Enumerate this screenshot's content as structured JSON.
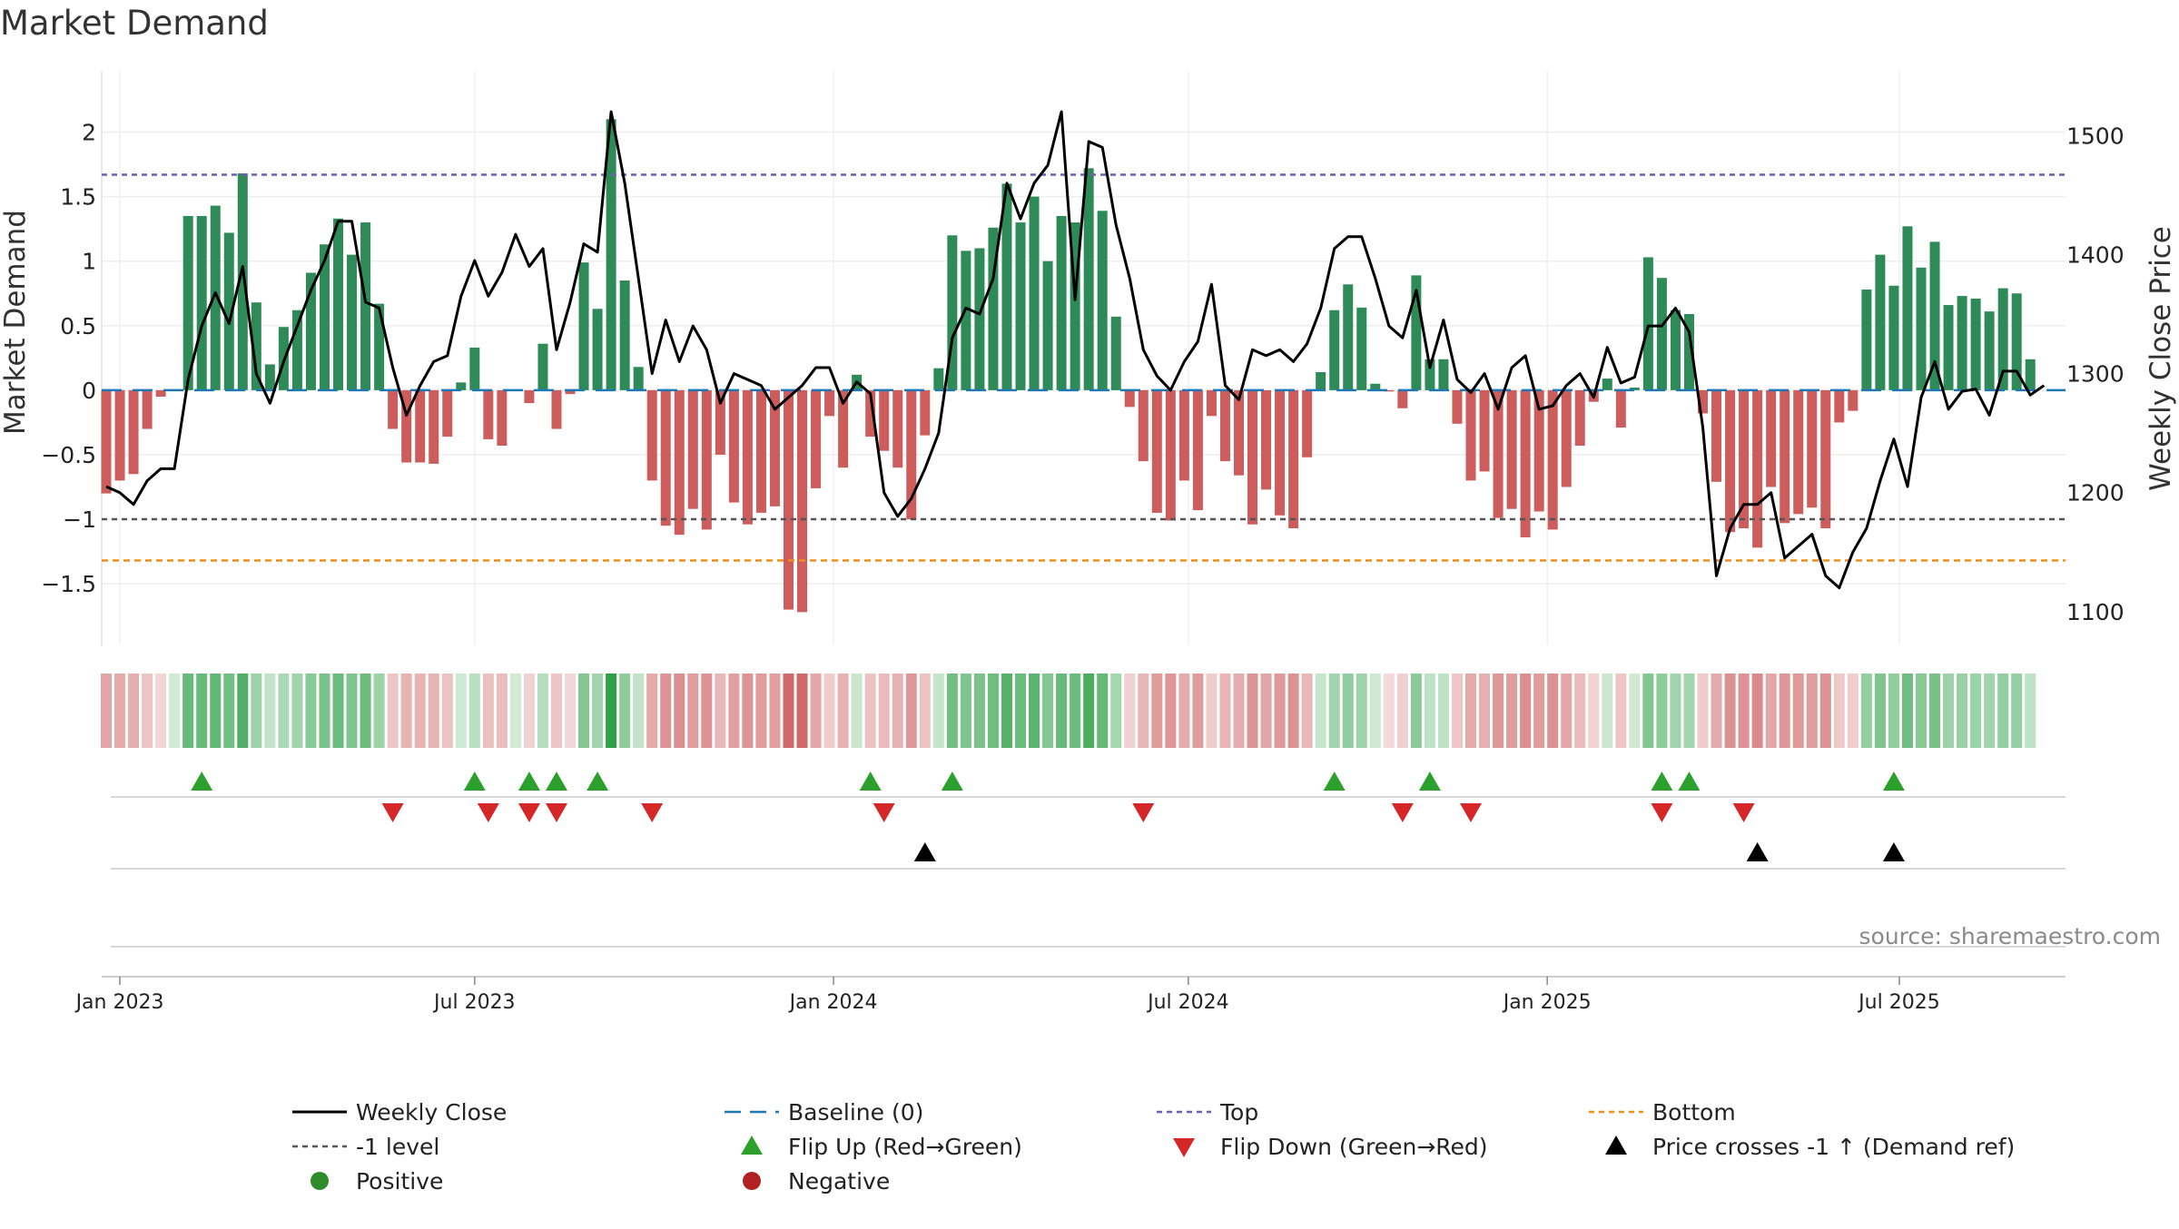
{
  "title": "Market Demand",
  "source_note": "source: sharemaestro.com",
  "colors": {
    "positive_bar": "#2e8b57",
    "negative_bar": "#cd5c5c",
    "close_line": "#000000",
    "baseline": "#1f77b4",
    "top": "#6b5fb5",
    "minus_one": "#555555",
    "bottom": "#f28e1c",
    "flip_up": "#2ca02c",
    "flip_down": "#d62728",
    "cross": "#000000"
  },
  "chart_data": {
    "type": "bar",
    "title": "Market Demand",
    "ylabel": "Market Demand",
    "y2label": "Weekly Close Price",
    "ylim": [
      -1.9,
      2.25
    ],
    "y2lim": [
      1080,
      1530
    ],
    "yticks": [
      2,
      1.5,
      1,
      0.5,
      0,
      -0.5,
      -1,
      -1.5
    ],
    "ytick_labels": [
      "2",
      "1.5",
      "1",
      "0.5",
      "0",
      "−0.5",
      "−1",
      "−1.5"
    ],
    "y2ticks": [
      1500,
      1400,
      1300,
      1200,
      1100
    ],
    "y2tick_labels": [
      "1500",
      "1400",
      "1300",
      "1200",
      "1100"
    ],
    "xticks": [
      {
        "label": "Jan 2023",
        "week": 1
      },
      {
        "label": "Jul 2023",
        "week": 27
      },
      {
        "label": "Jan 2024",
        "week": 53.3
      },
      {
        "label": "Jul 2024",
        "week": 79.3
      },
      {
        "label": "Jan 2025",
        "week": 105.6
      },
      {
        "label": "Jul 2025",
        "week": 131.4
      }
    ],
    "top_level": 1.67,
    "minus_one_level": -1,
    "bottom_level": -1.32,
    "baseline_level": 0,
    "demand": [
      -0.8,
      -0.7,
      -0.65,
      -0.3,
      -0.05,
      0,
      1.35,
      1.35,
      1.43,
      1.22,
      1.68,
      0.68,
      0.2,
      0.49,
      0.62,
      0.91,
      1.13,
      1.33,
      1.05,
      1.3,
      0.67,
      -0.3,
      -0.56,
      -0.56,
      -0.57,
      -0.36,
      0.06,
      0.33,
      -0.38,
      -0.43,
      0,
      -0.1,
      0.36,
      -0.3,
      -0.03,
      0.99,
      0.63,
      2.1,
      0.85,
      0.18,
      -0.7,
      -1.05,
      -1.12,
      -0.92,
      -1.08,
      -0.5,
      -0.87,
      -1.04,
      -0.95,
      -0.9,
      -1.7,
      -1.72,
      -0.76,
      -0.2,
      -0.6,
      0.12,
      -0.36,
      -0.47,
      -0.6,
      -1,
      -0.35,
      0.17,
      1.2,
      1.08,
      1.1,
      1.26,
      1.6,
      1.3,
      1.5,
      1.0,
      1.35,
      1.3,
      1.72,
      1.39,
      0.57,
      -0.13,
      -0.55,
      -0.95,
      -1.01,
      -0.7,
      -0.93,
      -0.2,
      -0.55,
      -0.66,
      -1.04,
      -0.77,
      -0.97,
      -1.07,
      -0.52,
      0.14,
      0.62,
      0.82,
      0.64,
      0.05,
      -0.01,
      -0.14,
      0.89,
      0.24,
      0.24,
      -0.26,
      -0.7,
      -0.63,
      -0.99,
      -0.92,
      -1.14,
      -0.94,
      -1.08,
      -0.75,
      -0.43,
      -0.09,
      0.09,
      -0.29,
      0.02,
      1.03,
      0.87,
      0.62,
      0.59,
      -0.18,
      -0.71,
      -1.1,
      -1.07,
      -1.22,
      -0.75,
      -1.03,
      -0.96,
      -0.91,
      -1.07,
      -0.25,
      -0.16,
      0.78,
      1.05,
      0.81,
      1.27,
      0.95,
      1.15,
      0.66,
      0.73,
      0.71,
      0.61,
      0.79,
      0.75,
      0.24
    ],
    "close": [
      1205,
      1200,
      1190,
      1210,
      1220,
      1220,
      1295,
      1340,
      1368,
      1342,
      1390,
      1300,
      1275,
      1310,
      1340,
      1370,
      1395,
      1428,
      1428,
      1360,
      1355,
      1305,
      1265,
      1290,
      1310,
      1315,
      1365,
      1395,
      1365,
      1385,
      1417,
      1390,
      1405,
      1320,
      1360,
      1409,
      1402,
      1520,
      1460,
      1380,
      1300,
      1345,
      1310,
      1340,
      1320,
      1275,
      1300,
      1295,
      1290,
      1270,
      1280,
      1290,
      1305,
      1305,
      1275,
      1293,
      1283,
      1200,
      1180,
      1195,
      1220,
      1250,
      1330,
      1355,
      1350,
      1380,
      1460,
      1430,
      1460,
      1475,
      1520,
      1362,
      1495,
      1490,
      1425,
      1380,
      1320,
      1298,
      1286,
      1310,
      1327,
      1375,
      1290,
      1278,
      1320,
      1315,
      1320,
      1310,
      1325,
      1355,
      1405,
      1415,
      1415,
      1380,
      1340,
      1330,
      1370,
      1305,
      1345,
      1295,
      1284,
      1300,
      1270,
      1305,
      1315,
      1270,
      1273,
      1290,
      1300,
      1280,
      1322,
      1292,
      1297,
      1340,
      1340,
      1355,
      1335,
      1255,
      1130,
      1170,
      1190,
      1190,
      1200,
      1145,
      1155,
      1165,
      1130,
      1120,
      1150,
      1170,
      1210,
      1245,
      1205,
      1280,
      1310,
      1270,
      1285,
      1287,
      1265,
      1302,
      1302,
      1282,
      1290
    ],
    "flip_up_weeks": [
      7,
      27,
      31,
      33,
      36,
      56,
      62,
      90,
      97,
      114,
      116,
      131
    ],
    "flip_down_weeks": [
      21,
      28,
      31,
      33,
      40,
      57,
      76,
      95,
      100,
      114,
      120
    ],
    "price_cross_weeks": [
      60,
      121,
      131
    ],
    "series": [
      {
        "name": "Weekly Close",
        "type": "line"
      },
      {
        "name": "Baseline (0)",
        "type": "line"
      },
      {
        "name": "Top",
        "type": "line"
      },
      {
        "name": "Bottom",
        "type": "line"
      },
      {
        "name": "-1 level",
        "type": "line"
      },
      {
        "name": "Flip Up (Red→Green)",
        "type": "marker"
      },
      {
        "name": "Flip Down (Green→Red)",
        "type": "marker"
      },
      {
        "name": "Price crosses -1 ↑ (Demand ref)",
        "type": "marker"
      },
      {
        "name": "Positive",
        "type": "marker"
      },
      {
        "name": "Negative",
        "type": "marker"
      }
    ],
    "legend_position": "bottom",
    "legend": [
      {
        "label": "Weekly Close",
        "key": "close"
      },
      {
        "label": "Baseline (0)",
        "key": "baseline"
      },
      {
        "label": "Top",
        "key": "top"
      },
      {
        "label": "Bottom",
        "key": "bottom"
      },
      {
        "label": "-1 level",
        "key": "minus_one"
      },
      {
        "label": "Flip Up (Red→Green)",
        "key": "flip_up"
      },
      {
        "label": "Flip Down (Green→Red)",
        "key": "flip_down"
      },
      {
        "label": "Price crosses -1 ↑ (Demand ref)",
        "key": "cross"
      },
      {
        "label": "Positive",
        "key": "positive"
      },
      {
        "label": "Negative",
        "key": "negative"
      }
    ]
  }
}
